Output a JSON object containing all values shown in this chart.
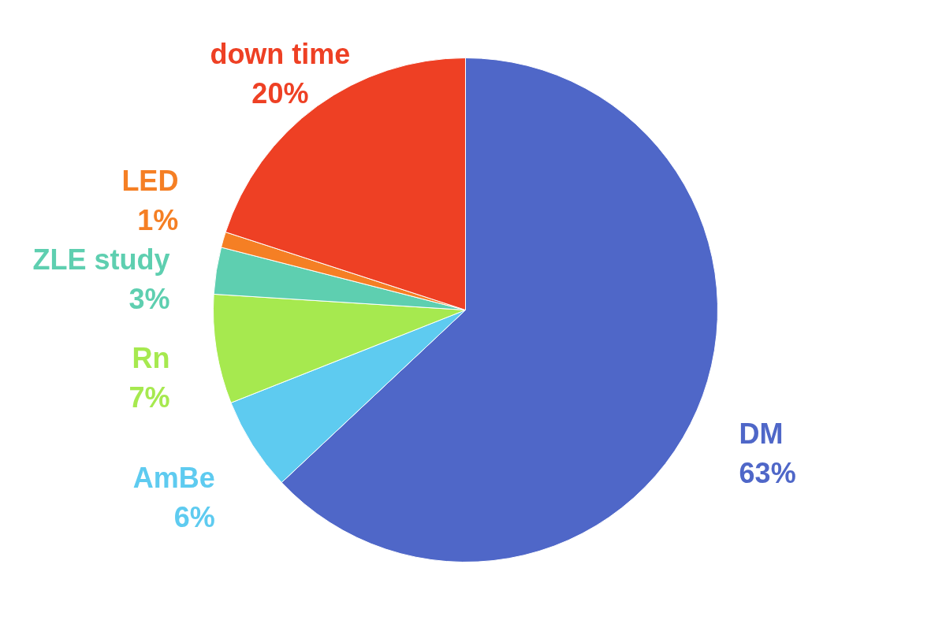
{
  "chart_data": {
    "type": "pie",
    "categories": [
      "DM",
      "AmBe",
      "Rn",
      "ZLE study",
      "LED",
      "down time"
    ],
    "values": [
      63,
      6,
      7,
      3,
      1,
      20
    ],
    "colors": [
      "#4f67c8",
      "#5ecbf0",
      "#a6e94f",
      "#5ecfb0",
      "#f57f24",
      "#ee4024"
    ],
    "value_labels": [
      "63%",
      "6%",
      "7%",
      "3%",
      "1%",
      "20%"
    ],
    "data_labels": true
  }
}
